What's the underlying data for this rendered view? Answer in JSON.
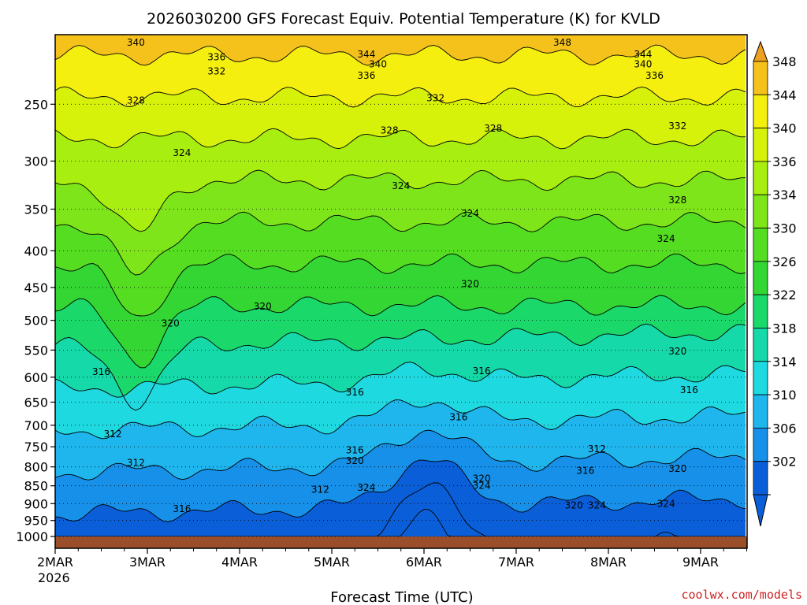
{
  "title": "2026030200 GFS Forecast Equiv. Potential Temperature (K) for KVLD",
  "credit": "coolwx.com/models",
  "colors": {
    "ground": "#9b4e2a",
    "palette": [
      "#0a5fd9",
      "#1690e8",
      "#1fb6ee",
      "#1ed9e0",
      "#15d9a8",
      "#1ad96a",
      "#33d633",
      "#55dd22",
      "#7ee51a",
      "#a8ee10",
      "#d7f20a",
      "#f5ef10",
      "#f5c21c",
      "#eea020"
    ]
  },
  "chart_data": {
    "type": "heatmap",
    "title": "2026030200 GFS Forecast Equiv. Potential Temperature (K) for KVLD",
    "xlabel": "Forecast Time (UTC)",
    "ylabel": "",
    "x_tick_labels": [
      "2MAR",
      "3MAR",
      "4MAR",
      "5MAR",
      "6MAR",
      "7MAR",
      "8MAR",
      "9MAR"
    ],
    "x_year_label": "2026",
    "y_tick_labels": [
      "250",
      "300",
      "350",
      "400",
      "450",
      "500",
      "550",
      "600",
      "650",
      "700",
      "750",
      "800",
      "850",
      "900",
      "950",
      "1000"
    ],
    "y_scale": "log-pressure (hPa, inverted)",
    "colorbar_labels": [
      "348",
      "344",
      "340",
      "336",
      "334",
      "330",
      "326",
      "322",
      "318",
      "314",
      "310",
      "306",
      "302"
    ],
    "contour_labels": [
      {
        "text": "340",
        "time": "2MAR 21Z",
        "level": 205
      },
      {
        "text": "348",
        "time": "7MAR 12Z",
        "level": 205
      },
      {
        "text": "336",
        "time": "3MAR 18Z",
        "level": 215
      },
      {
        "text": "344",
        "time": "5MAR 09Z",
        "level": 213
      },
      {
        "text": "344",
        "time": "8MAR 09Z",
        "level": 213
      },
      {
        "text": "340",
        "time": "5MAR 12Z",
        "level": 220
      },
      {
        "text": "340",
        "time": "8MAR 09Z",
        "level": 220
      },
      {
        "text": "332",
        "time": "3MAR 18Z",
        "level": 225
      },
      {
        "text": "336",
        "time": "5MAR 09Z",
        "level": 228
      },
      {
        "text": "336",
        "time": "8MAR 12Z",
        "level": 228
      },
      {
        "text": "328",
        "time": "2MAR 21Z",
        "level": 247
      },
      {
        "text": "332",
        "time": "6MAR 03Z",
        "level": 245
      },
      {
        "text": "328",
        "time": "5MAR 15Z",
        "level": 272
      },
      {
        "text": "328",
        "time": "6MAR 18Z",
        "level": 270
      },
      {
        "text": "332",
        "time": "8MAR 18Z",
        "level": 268
      },
      {
        "text": "324",
        "time": "3MAR 09Z",
        "level": 292
      },
      {
        "text": "324",
        "time": "5MAR 18Z",
        "level": 325
      },
      {
        "text": "328",
        "time": "8MAR 18Z",
        "level": 340
      },
      {
        "text": "324",
        "time": "6MAR 12Z",
        "level": 355
      },
      {
        "text": "324",
        "time": "8MAR 15Z",
        "level": 385
      },
      {
        "text": "320",
        "time": "6MAR 12Z",
        "level": 445
      },
      {
        "text": "320",
        "time": "4MAR 06Z",
        "level": 478
      },
      {
        "text": "320",
        "time": "3MAR 06Z",
        "level": 505
      },
      {
        "text": "320",
        "time": "8MAR 18Z",
        "level": 552
      },
      {
        "text": "316",
        "time": "2MAR 12Z",
        "level": 590
      },
      {
        "text": "316",
        "time": "6MAR 15Z",
        "level": 588
      },
      {
        "text": "316",
        "time": "5MAR 06Z",
        "level": 630
      },
      {
        "text": "316",
        "time": "8MAR 21Z",
        "level": 625
      },
      {
        "text": "316",
        "time": "6MAR 09Z",
        "level": 682
      },
      {
        "text": "312",
        "time": "2MAR 15Z",
        "level": 720
      },
      {
        "text": "312",
        "time": "7MAR 21Z",
        "level": 755
      },
      {
        "text": "316",
        "time": "5MAR 06Z",
        "level": 758
      },
      {
        "text": "320",
        "time": "5MAR 06Z",
        "level": 785
      },
      {
        "text": "312",
        "time": "2MAR 21Z",
        "level": 790
      },
      {
        "text": "316",
        "time": "7MAR 18Z",
        "level": 810
      },
      {
        "text": "320",
        "time": "8MAR 18Z",
        "level": 805
      },
      {
        "text": "320",
        "time": "6MAR 15Z",
        "level": 830
      },
      {
        "text": "312",
        "time": "4MAR 21Z",
        "level": 860
      },
      {
        "text": "324",
        "time": "5MAR 09Z",
        "level": 855
      },
      {
        "text": "324",
        "time": "6MAR 15Z",
        "level": 850
      },
      {
        "text": "316",
        "time": "3MAR 09Z",
        "level": 915
      },
      {
        "text": "320",
        "time": "7MAR 15Z",
        "level": 905
      },
      {
        "text": "324",
        "time": "7MAR 21Z",
        "level": 905
      },
      {
        "text": "324",
        "time": "8MAR 15Z",
        "level": 900
      }
    ]
  }
}
